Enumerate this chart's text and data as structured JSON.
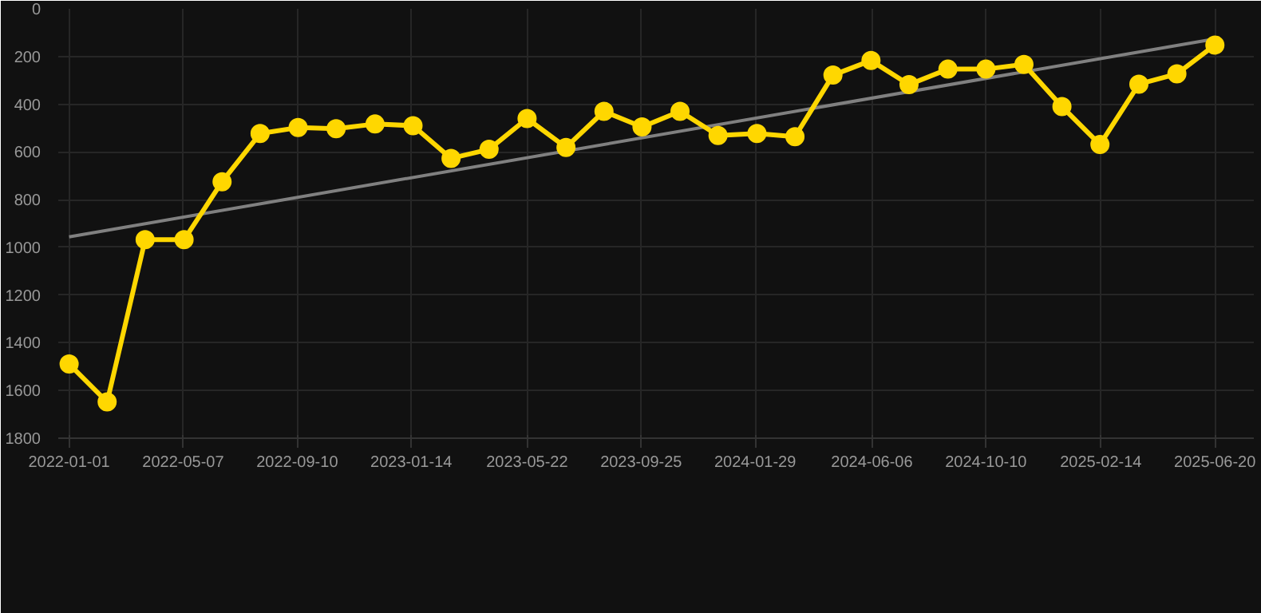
{
  "chart_data": {
    "type": "line",
    "x": [
      "2022-01-01",
      "2022-02-12",
      "2022-03-26",
      "2022-05-08",
      "2022-06-19",
      "2022-07-31",
      "2022-09-11",
      "2022-10-23",
      "2022-12-05",
      "2023-01-16",
      "2023-02-27",
      "2023-04-10",
      "2023-05-22",
      "2023-07-04",
      "2023-08-15",
      "2023-09-26",
      "2023-11-07",
      "2023-12-19",
      "2024-01-31",
      "2024-03-13",
      "2024-04-24",
      "2024-06-05",
      "2024-07-17",
      "2024-08-29",
      "2024-10-10",
      "2024-11-21",
      "2025-01-02",
      "2025-02-13",
      "2025-03-28",
      "2025-05-09",
      "2025-06-20"
    ],
    "series": [
      {
        "color": "#ffd700",
        "marker": "circle",
        "values": [
          1489,
          1648,
          968,
          968,
          725,
          523,
          498,
          503,
          483,
          490,
          627,
          589,
          460,
          581,
          430,
          495,
          430,
          531,
          523,
          536,
          278,
          217,
          318,
          253,
          253,
          233,
          410,
          569,
          316,
          273,
          152
        ]
      },
      {
        "color": "#808080",
        "marker": "none",
        "x": [
          "2022-01-01",
          "2025-06-20"
        ],
        "values": [
          956,
          126
        ]
      }
    ],
    "ylim": [
      1800,
      0
    ],
    "yticks": [
      0,
      200,
      400,
      600,
      800,
      1000,
      1200,
      1400,
      1600,
      1800
    ],
    "xlim": [
      "2021-12-20",
      "2025-08-02"
    ],
    "xticks": [
      "2022-01-01",
      "2022-05-07",
      "2022-09-10",
      "2023-01-14",
      "2023-05-22",
      "2023-09-25",
      "2024-01-29",
      "2024-06-06",
      "2024-10-10",
      "2025-02-14",
      "2025-06-20"
    ],
    "grid": true
  }
}
